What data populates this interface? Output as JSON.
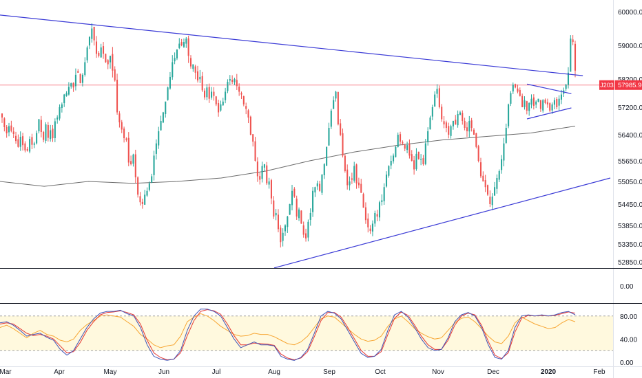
{
  "colors": {
    "up": "#26a69a",
    "down": "#ef5350",
    "trendline": "#3b3bd6",
    "moving_average": "#6b6b6b",
    "price_line": "#f23645",
    "stoch_k": "#3f51b5",
    "stoch_d": "#e53935",
    "rsi": "#f7a633",
    "stoch_band": "#fff9de"
  },
  "chart_data": {
    "type": "candlestick",
    "price_scale": {
      "ticks": [
        "60000.00",
        "59000.00",
        "58200.00",
        "57200.00",
        "56400.00",
        "55650.00",
        "55050.00",
        "54450.00",
        "53850.00",
        "53350.00",
        "52850.00"
      ],
      "range": [
        52650,
        60400
      ]
    },
    "last_price": {
      "value": 57985.96,
      "label": "57985.96",
      "tag": "J203"
    },
    "time_axis": [
      "Mar",
      "Apr",
      "May",
      "Jun",
      "Jul",
      "Aug",
      "Sep",
      "Oct",
      "Nov",
      "Dec",
      "2020",
      "Feb"
    ],
    "candles_close": [
      56900,
      56620,
      56440,
      56650,
      56510,
      56420,
      56220,
      56050,
      56340,
      56100,
      55950,
      55940,
      56280,
      56110,
      56150,
      56450,
      56850,
      56480,
      56250,
      56700,
      56310,
      56530,
      56300,
      56790,
      56900,
      57200,
      57300,
      57650,
      57700,
      57920,
      58050,
      57900,
      58300,
      58350,
      58050,
      58300,
      58600,
      58950,
      59250,
      59500,
      59150,
      58800,
      58750,
      58950,
      58800,
      58600,
      58550,
      58750,
      58400,
      58150,
      57050,
      56760,
      56550,
      56300,
      56250,
      55600,
      55550,
      55830,
      55170,
      54700,
      54500,
      54450,
      54700,
      54800,
      55000,
      55200,
      55800,
      56150,
      56500,
      56800,
      57050,
      57400,
      57900,
      58250,
      58600,
      58700,
      58900,
      59050,
      59000,
      59100,
      59200,
      58750,
      58500,
      58550,
      58350,
      58150,
      58250,
      57800,
      57550,
      57900,
      57500,
      57750,
      57600,
      57300,
      57050,
      57300,
      57400,
      57750,
      58100,
      58200,
      58100,
      58200,
      57950,
      57750,
      57650,
      57300,
      57150,
      56900,
      56400,
      56200,
      55650,
      55200,
      55100,
      55500,
      55550,
      55000,
      55050,
      54600,
      54100,
      54200,
      53750,
      53400,
      53650,
      53850,
      54100,
      54450,
      54800,
      54650,
      54100,
      54300,
      53900,
      53600,
      53500,
      53950,
      54200,
      54800,
      54900,
      55000,
      54800,
      55250,
      55550,
      56050,
      56600,
      57100,
      57450,
      57750,
      56700,
      56400,
      55800,
      55350,
      54950,
      55050,
      55100,
      55500,
      55000,
      54950,
      54750,
      54350,
      54000,
      53800,
      53700,
      53900,
      54200,
      54100,
      54500,
      54550,
      54900,
      55250,
      55500,
      55650,
      55800,
      56050,
      56400,
      56200,
      56150,
      56000,
      56100,
      55800,
      55650,
      55400,
      55850,
      55700,
      55700,
      55550,
      56150,
      56500,
      56900,
      57200,
      57650,
      57850,
      57200,
      56850,
      56700,
      56600,
      56400,
      56650,
      56800,
      56700,
      57000,
      57050,
      56800,
      56600,
      56500,
      56800,
      56600,
      56400,
      56050,
      55650,
      55200,
      55050,
      54900,
      54700,
      54450,
      54650,
      54900,
      55150,
      55350,
      55700,
      56150,
      56600,
      57300,
      57700,
      58000,
      57900,
      57750,
      57600,
      57200,
      57450,
      57100,
      57350,
      57500,
      57250,
      57400,
      57500,
      57150,
      57450,
      57350,
      57300,
      57100,
      57300,
      57450,
      57200,
      57500,
      57650,
      57800,
      58000,
      58350,
      59200,
      59100,
      58400
    ],
    "moving_average": {
      "approx_values_start_to_end": [
        55050,
        54920,
        55050,
        55000,
        55050,
        55150,
        55350,
        55650,
        55900,
        56100,
        56250,
        56350,
        56450,
        56650
      ]
    },
    "trendlines": [
      {
        "name": "upper-descending",
        "from": {
          "date": "2019-02-20",
          "price": 59900
        },
        "to": {
          "date": "2020-01-22",
          "price": 58280
        }
      },
      {
        "name": "lower-ascending",
        "from": {
          "date": "2019-08-01",
          "price": 52680
        },
        "to": {
          "date": "2020-02-04",
          "price": 55150
        }
      },
      {
        "name": "pennant-upper",
        "from": {
          "date": "2019-12-20",
          "price": 58020
        },
        "to": {
          "date": "2020-01-15",
          "price": 57680
        }
      },
      {
        "name": "pennant-lower",
        "from": {
          "date": "2019-12-20",
          "price": 56860
        },
        "to": {
          "date": "2020-01-15",
          "price": 57180
        }
      }
    ],
    "empty_pane": {
      "ticks": [
        "0.00"
      ]
    },
    "oscillator": {
      "ticks": [
        "80.00",
        "40.00",
        "0.00"
      ],
      "range": [
        -5,
        100
      ],
      "upper_band": 80,
      "lower_band": 20,
      "stoch_k": [
        68,
        70,
        64,
        55,
        45,
        48,
        50,
        43,
        38,
        22,
        12,
        20,
        40,
        60,
        75,
        85,
        88,
        88,
        90,
        84,
        80,
        60,
        30,
        10,
        5,
        3,
        5,
        20,
        55,
        80,
        92,
        92,
        88,
        80,
        60,
        40,
        25,
        30,
        35,
        30,
        30,
        28,
        10,
        5,
        3,
        8,
        22,
        50,
        80,
        88,
        85,
        75,
        55,
        35,
        15,
        8,
        10,
        22,
        55,
        82,
        88,
        78,
        60,
        40,
        25,
        20,
        22,
        42,
        70,
        82,
        86,
        80,
        60,
        30,
        8,
        5,
        20,
        60,
        80,
        82,
        80,
        82,
        80,
        82,
        86,
        88,
        82
      ],
      "stoch_d": [
        66,
        68,
        66,
        58,
        50,
        46,
        48,
        45,
        40,
        28,
        16,
        18,
        34,
        55,
        70,
        82,
        86,
        87,
        89,
        86,
        82,
        66,
        38,
        16,
        8,
        4,
        5,
        16,
        46,
        72,
        88,
        91,
        89,
        83,
        66,
        46,
        30,
        30,
        33,
        32,
        31,
        29,
        14,
        7,
        4,
        7,
        18,
        44,
        72,
        86,
        86,
        78,
        60,
        40,
        20,
        10,
        10,
        18,
        48,
        76,
        87,
        81,
        64,
        45,
        30,
        22,
        22,
        38,
        64,
        80,
        85,
        82,
        64,
        36,
        12,
        6,
        16,
        52,
        76,
        81,
        80,
        81,
        80,
        81,
        84,
        87,
        85
      ],
      "rsi": [
        60,
        64,
        58,
        50,
        42,
        50,
        55,
        48,
        45,
        38,
        35,
        40,
        55,
        65,
        72,
        80,
        82,
        80,
        78,
        70,
        62,
        48,
        40,
        30,
        25,
        28,
        30,
        45,
        70,
        78,
        84,
        80,
        72,
        62,
        55,
        48,
        45,
        46,
        50,
        48,
        48,
        44,
        38,
        32,
        30,
        35,
        45,
        60,
        75,
        80,
        78,
        68,
        58,
        48,
        40,
        36,
        38,
        45,
        62,
        75,
        80,
        70,
        58,
        50,
        44,
        40,
        42,
        55,
        68,
        76,
        78,
        70,
        58,
        45,
        35,
        32,
        45,
        68,
        78,
        72,
        66,
        62,
        58,
        60,
        68,
        74,
        70
      ]
    }
  }
}
